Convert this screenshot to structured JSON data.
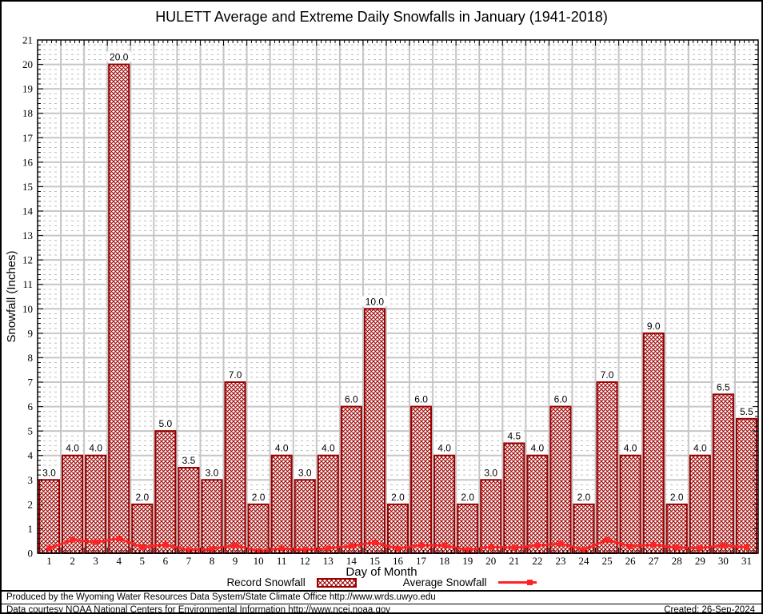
{
  "title": "HULETT Average and Extreme Daily Snowfalls in January (1941-2018)",
  "chart_data": {
    "type": "bar",
    "title": "HULETT Average and Extreme Daily Snowfalls in January (1941-2018)",
    "xlabel": "Day of Month",
    "ylabel": "Snowfall (Inches)",
    "ylim": [
      0,
      21
    ],
    "ytick_step": 1,
    "grid": "major solid gray + minor dotted",
    "legend_position": "bottom center",
    "days": [
      1,
      2,
      3,
      4,
      5,
      6,
      7,
      8,
      9,
      10,
      11,
      12,
      13,
      14,
      15,
      16,
      17,
      18,
      19,
      20,
      21,
      22,
      23,
      24,
      25,
      26,
      27,
      28,
      29,
      30,
      31
    ],
    "series": [
      {
        "name": "Record Snowfall",
        "type": "bar",
        "values": [
          3.0,
          4.0,
          4.0,
          20.0,
          2.0,
          5.0,
          3.5,
          3.0,
          7.0,
          2.0,
          4.0,
          3.0,
          4.0,
          6.0,
          10.0,
          2.0,
          6.0,
          4.0,
          2.0,
          3.0,
          4.5,
          4.0,
          6.0,
          2.0,
          7.0,
          4.0,
          9.0,
          2.0,
          4.0,
          6.5,
          5.5
        ],
        "labels": [
          "3.0",
          "4.0",
          "4.0",
          "20.0",
          "2.0",
          "5.0",
          "3.5",
          "3.0",
          "7.0",
          "2.0",
          "4.0",
          "3.0",
          "4.0",
          "6.0",
          "10.0",
          "2.0",
          "6.0",
          "4.0",
          "2.0",
          "3.0",
          "4.5",
          "4.0",
          "6.0",
          "2.0",
          "7.0",
          "4.0",
          "9.0",
          "2.0",
          "4.0",
          "6.5",
          "5.5"
        ]
      },
      {
        "name": "Average Snowfall",
        "type": "line",
        "values": [
          0.2,
          0.55,
          0.45,
          0.6,
          0.25,
          0.35,
          0.13,
          0.17,
          0.33,
          0.08,
          0.2,
          0.14,
          0.2,
          0.3,
          0.44,
          0.19,
          0.33,
          0.32,
          0.13,
          0.26,
          0.22,
          0.32,
          0.39,
          0.14,
          0.55,
          0.28,
          0.35,
          0.23,
          0.21,
          0.32,
          0.25
        ]
      }
    ],
    "colors": {
      "bar_border": "#990000",
      "bar_hatch": "#990000",
      "average_line": "#ff2222",
      "major_grid": "#c6c6c6",
      "minor_grid": "#bdbdbd",
      "axis": "#000000",
      "background": "#ffffff"
    }
  },
  "legend": {
    "record_label": "Record Snowfall",
    "average_label": "Average Snowfall"
  },
  "footer": {
    "line1": "Produced by the Wyoming Water Resources Data System/State Climate Office http://www.wrds.uwyo.edu",
    "line2": "Data courtesy NOAA National Centers for Environmental Information http://www.ncei.noaa.gov",
    "created": "Created: 26-Sep-2024"
  }
}
